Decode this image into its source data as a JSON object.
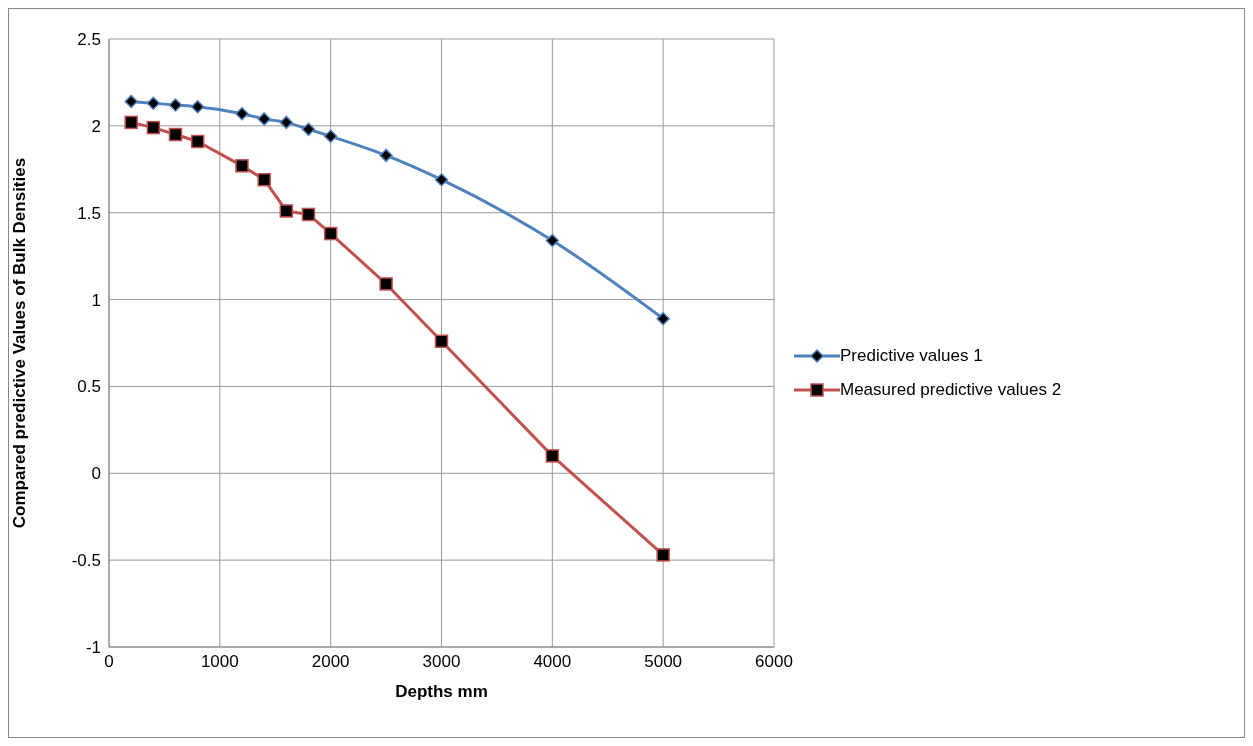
{
  "chart_data": {
    "type": "line",
    "xlabel": "Depths mm",
    "ylabel": "Compared predictive Values of Bulk Densities",
    "x": [
      200,
      400,
      600,
      800,
      1200,
      1400,
      1600,
      1800,
      2000,
      2500,
      3000,
      4000,
      5000
    ],
    "series": [
      {
        "name": "Predictive values 1",
        "color": "#4f81bd",
        "marker": "diamond",
        "values": [
          2.14,
          2.13,
          2.12,
          2.11,
          2.07,
          2.04,
          2.02,
          1.98,
          1.94,
          1.83,
          1.69,
          1.34,
          0.89
        ]
      },
      {
        "name": "Measured predictive values 2",
        "color": "#c0504d",
        "marker": "square",
        "values": [
          2.02,
          1.99,
          1.95,
          1.91,
          1.77,
          1.69,
          1.51,
          1.49,
          1.38,
          1.09,
          0.76,
          0.1,
          -0.47
        ]
      }
    ],
    "xlim": [
      0,
      6000
    ],
    "xticks": [
      0,
      1000,
      2000,
      3000,
      4000,
      5000,
      6000
    ],
    "ylim": [
      -1,
      2.5
    ],
    "yticks": [
      -1,
      -0.5,
      0,
      0.5,
      1,
      1.5,
      2,
      2.5
    ],
    "grid": true,
    "legend": "right",
    "line_style": "solid"
  }
}
